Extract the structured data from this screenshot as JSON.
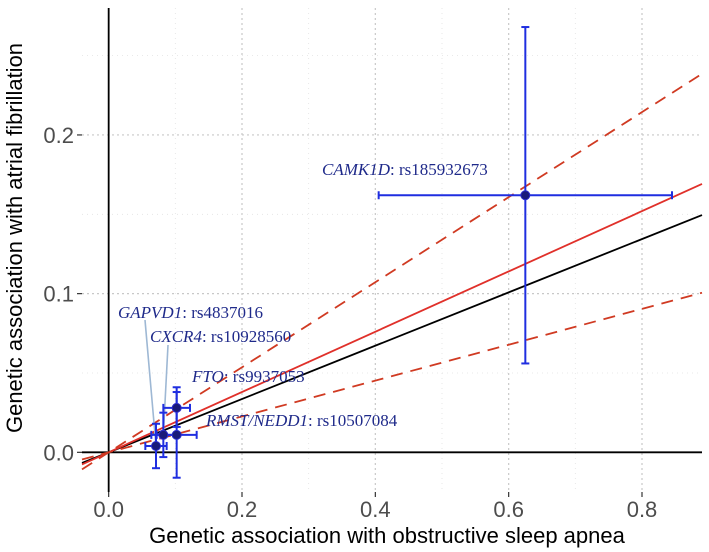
{
  "chart_data": {
    "type": "scatter",
    "xlabel": "Genetic association with obstructive sleep apnea",
    "ylabel": "Genetic association with atrial fibrillation",
    "xlim": [
      -0.04,
      0.89
    ],
    "ylim": [
      -0.025,
      0.28
    ],
    "x_ticks": [
      0.0,
      0.2,
      0.4,
      0.6,
      0.8
    ],
    "x_tick_labels": [
      "0.0",
      "0.2",
      "0.4",
      "0.6",
      "0.8"
    ],
    "y_ticks": [
      0.0,
      0.1,
      0.2
    ],
    "y_tick_labels": [
      "0.0",
      "0.1",
      "0.2"
    ],
    "x_minor_ticks": [
      0.1,
      0.3,
      0.5,
      0.7
    ],
    "y_minor_ticks": [
      0.05,
      0.15,
      0.25
    ],
    "grid": true,
    "points": [
      {
        "gene": "CAMK1D",
        "rsid": ": rs185932673",
        "x": 0.625,
        "y": 0.162,
        "x_low": 0.405,
        "x_high": 0.845,
        "y_low": 0.056,
        "y_high": 0.268
      },
      {
        "gene": "GAPVD1",
        "rsid": ": rs4837016",
        "x": 0.071,
        "y": 0.004,
        "x_low": 0.055,
        "x_high": 0.087,
        "y_low": -0.01,
        "y_high": 0.018
      },
      {
        "gene": "CXCR4",
        "rsid": ": rs10928560",
        "x": 0.082,
        "y": 0.011,
        "x_low": 0.064,
        "x_high": 0.1,
        "y_low": -0.003,
        "y_high": 0.025
      },
      {
        "gene": "FTO",
        "rsid": ": rs9937053",
        "x": 0.102,
        "y": 0.028,
        "x_low": 0.082,
        "x_high": 0.122,
        "y_low": 0.016,
        "y_high": 0.041
      },
      {
        "gene": "RMST/NEDD1",
        "rsid": ": rs10507084",
        "x": 0.102,
        "y": 0.011,
        "x_low": 0.072,
        "x_high": 0.132,
        "y_low": -0.016,
        "y_high": 0.038
      }
    ],
    "lines": [
      {
        "name": "reference",
        "intercept": 0.0,
        "slope": 0.168,
        "color": "#000000",
        "dashed": false
      },
      {
        "name": "estimate",
        "intercept": 0.0,
        "slope": 0.19,
        "color": "#e0302a",
        "dashed": false
      },
      {
        "name": "ci-upper",
        "intercept": 0.0,
        "slope": 0.268,
        "color": "#d03a22",
        "dashed": true
      },
      {
        "name": "ci-lower",
        "intercept": 0.0,
        "slope": 0.113,
        "color": "#d03a22",
        "dashed": true
      }
    ],
    "colors": {
      "point": "#1a1a7a",
      "errorbar": "#1f2ee0",
      "label": "#1f2a8a",
      "connector": "#9eb8d4"
    }
  }
}
